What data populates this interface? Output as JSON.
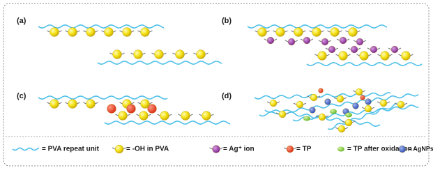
{
  "panels": [
    {
      "label": "(a)"
    },
    {
      "label": "(b)"
    },
    {
      "label": "(c)"
    },
    {
      "label": "(d)"
    }
  ],
  "legend": [
    {
      "label": "= PVA repeat unit"
    },
    {
      "label": "= -OH in PVA"
    },
    {
      "label": "= Ag⁺ ion"
    },
    {
      "label": "= TP"
    },
    {
      "label": "= TP after oxidation"
    },
    {
      "label": "= AgNPs"
    }
  ]
}
